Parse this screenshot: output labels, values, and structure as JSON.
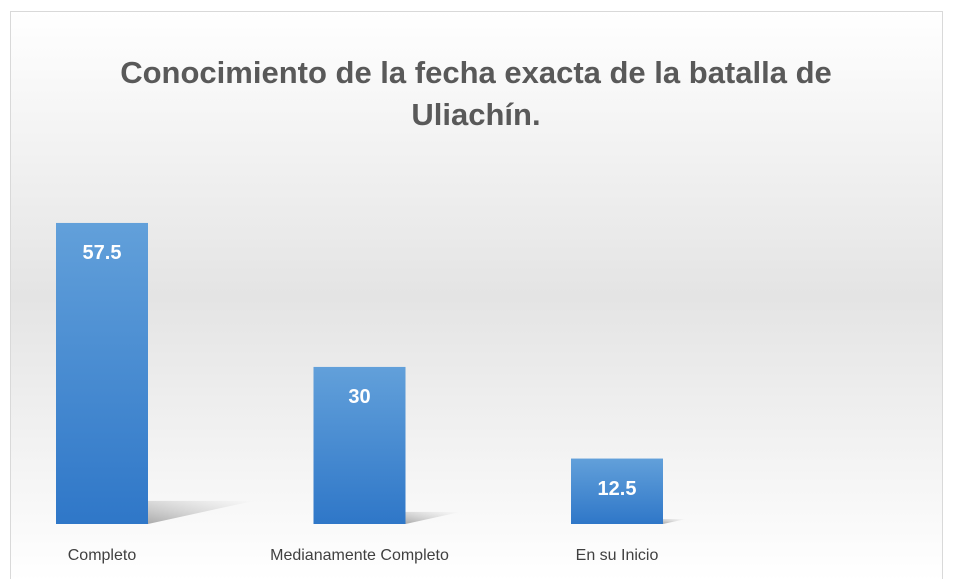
{
  "chart_data": {
    "type": "bar",
    "title": "Conocimiento de la fecha exacta de la batalla de Uliachín.",
    "categories": [
      "Completo",
      "Medianamente Completo",
      "En su Inicio"
    ],
    "values": [
      57.5,
      30,
      12.5
    ],
    "color": "#4a8ad0",
    "ylim": [
      0,
      70
    ]
  }
}
